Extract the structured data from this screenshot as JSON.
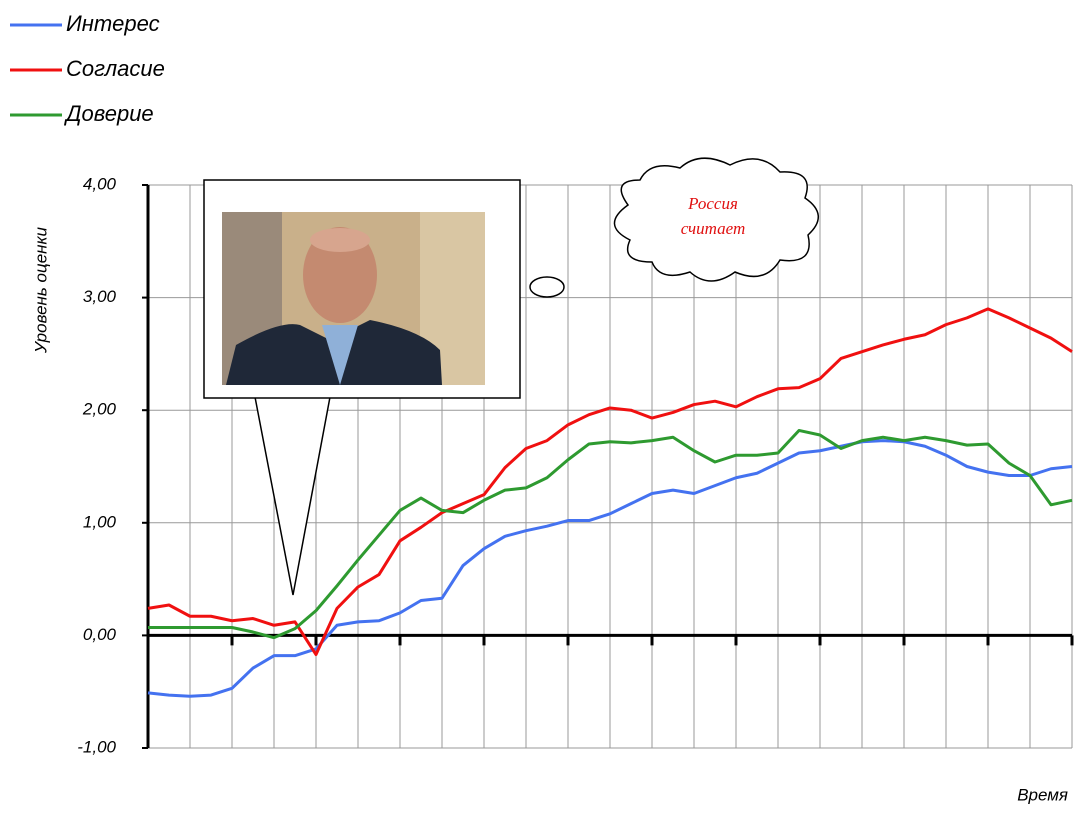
{
  "chart_data": {
    "type": "line",
    "y_label": "Уровень оценки",
    "x_label": "Время",
    "annotations": [
      "Россия",
      "считает"
    ],
    "categories": [
      null,
      null,
      null,
      null,
      null,
      null,
      null,
      null,
      null,
      null,
      null,
      null,
      null,
      null,
      null,
      null,
      null,
      null,
      null,
      null,
      null,
      null,
      null,
      null,
      null,
      null,
      null,
      null,
      null,
      null,
      null,
      null,
      null,
      null,
      null,
      null,
      null,
      null,
      null,
      null,
      null,
      null,
      null,
      null,
      null
    ],
    "ylim": [
      -1,
      4
    ],
    "yticks": [
      {
        "value": -1,
        "label": "-1,00"
      },
      {
        "value": 0,
        "label": "0,00"
      },
      {
        "value": 1,
        "label": "1,00"
      },
      {
        "value": 2,
        "label": "2,00"
      },
      {
        "value": 3,
        "label": "3,00"
      },
      {
        "value": 4,
        "label": "4,00"
      }
    ],
    "grid": true,
    "series": [
      {
        "name": "Интерес",
        "color": "#4472f0",
        "values": [
          -0.51,
          -0.53,
          -0.54,
          -0.53,
          -0.47,
          -0.29,
          -0.18,
          -0.18,
          -0.12,
          0.09,
          0.12,
          0.13,
          0.2,
          0.31,
          0.33,
          0.62,
          0.77,
          0.88,
          0.93,
          0.97,
          1.02,
          1.02,
          1.08,
          1.17,
          1.26,
          1.29,
          1.26,
          1.33,
          1.4,
          1.44,
          1.53,
          1.62,
          1.64,
          1.68,
          1.72,
          1.73,
          1.72,
          1.68,
          1.6,
          1.5,
          1.45,
          1.42,
          1.42,
          1.48,
          1.5
        ]
      },
      {
        "name": "Согласие",
        "color": "#f01010",
        "values": [
          0.24,
          0.27,
          0.17,
          0.17,
          0.13,
          0.15,
          0.09,
          0.12,
          -0.17,
          0.24,
          0.43,
          0.54,
          0.84,
          0.96,
          1.09,
          1.17,
          1.25,
          1.49,
          1.66,
          1.73,
          1.87,
          1.96,
          2.02,
          2.0,
          1.93,
          1.98,
          2.05,
          2.08,
          2.03,
          2.12,
          2.19,
          2.2,
          2.28,
          2.46,
          2.52,
          2.58,
          2.63,
          2.67,
          2.76,
          2.82,
          2.9,
          2.82,
          2.73,
          2.64,
          2.52
        ]
      },
      {
        "name": "Доверие",
        "color": "#2e9a30",
        "values": [
          0.07,
          0.07,
          0.07,
          0.07,
          0.07,
          0.03,
          -0.02,
          0.06,
          0.22,
          0.44,
          0.67,
          0.89,
          1.11,
          1.22,
          1.11,
          1.09,
          1.2,
          1.29,
          1.31,
          1.4,
          1.56,
          1.7,
          1.72,
          1.71,
          1.73,
          1.76,
          1.64,
          1.54,
          1.6,
          1.6,
          1.62,
          1.82,
          1.78,
          1.66,
          1.73,
          1.76,
          1.73,
          1.76,
          1.73,
          1.69,
          1.7,
          1.53,
          1.42,
          1.16,
          1.2
        ]
      }
    ]
  }
}
